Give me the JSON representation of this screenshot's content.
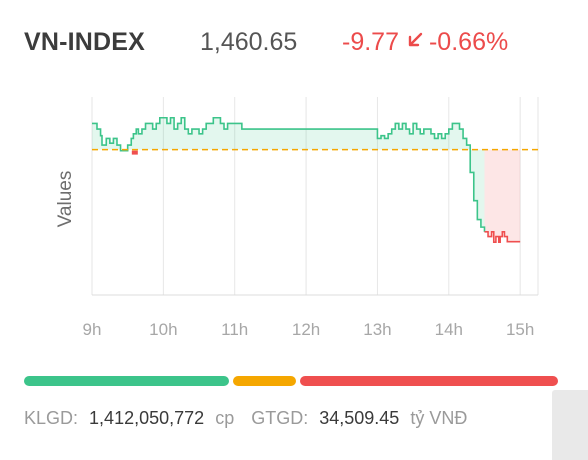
{
  "index": {
    "name": "VN-INDEX",
    "price": "1,460.65",
    "change": "-9.77",
    "change_pct": "-0.66%",
    "direction": "down",
    "direction_icon": "arrow-down-left-icon",
    "colors": {
      "up": "#3cc48a",
      "down": "#ef4f4f",
      "reference": "#f5a700"
    }
  },
  "chart_data": {
    "type": "area",
    "ylabel": "Values",
    "x_ticks": [
      "9h",
      "10h",
      "11h",
      "12h",
      "13h",
      "14h",
      "15h"
    ],
    "reference_value": 1470.42,
    "series": [
      {
        "x": [
          9.0,
          9.07,
          9.12,
          9.14,
          9.2,
          9.25,
          9.3,
          9.35,
          9.4,
          9.5,
          9.55,
          9.58,
          9.62,
          9.65,
          9.7,
          9.75,
          9.8,
          9.85,
          9.9,
          9.95,
          10.0,
          10.05,
          10.1,
          10.15,
          10.2,
          10.25,
          10.3,
          10.35,
          10.4,
          10.45,
          10.5,
          10.55,
          10.6,
          10.65,
          10.7,
          10.75,
          10.8,
          10.85,
          10.9,
          10.95,
          11.0,
          11.05,
          11.1,
          11.15,
          11.2,
          11.25,
          11.3,
          11.35,
          11.4,
          11.45,
          11.5,
          12.0,
          12.5,
          12.95,
          13.0,
          13.05,
          13.1,
          13.15,
          13.2,
          13.25,
          13.3,
          13.35,
          13.4,
          13.45,
          13.5,
          13.55,
          13.6,
          13.65,
          13.7,
          13.75,
          13.8,
          13.85,
          13.9,
          13.95,
          14.0,
          14.05,
          14.1,
          14.15,
          14.2,
          14.25,
          14.3,
          14.35,
          14.4,
          14.45,
          14.5
        ],
        "y": [
          1473.2,
          1472.6,
          1471.9,
          1470.9,
          1471.6,
          1471.1,
          1471.6,
          1470.9,
          1470.3,
          1470.9,
          1471.6,
          1472.1,
          1472.6,
          1472.1,
          1472.6,
          1473.2,
          1473.2,
          1472.6,
          1473.2,
          1473.8,
          1473.8,
          1473.2,
          1473.8,
          1472.6,
          1473.2,
          1473.8,
          1472.6,
          1472.1,
          1472.6,
          1472.6,
          1472.1,
          1472.6,
          1473.2,
          1473.2,
          1473.8,
          1473.8,
          1473.2,
          1472.6,
          1473.2,
          1473.2,
          1473.2,
          1473.2,
          1472.6,
          1472.6,
          1472.6,
          1472.6,
          1472.6,
          1472.6,
          1472.6,
          1472.6,
          1472.6,
          1472.6,
          1472.6,
          1472.6,
          1471.6,
          1471.9,
          1471.6,
          1472.1,
          1472.6,
          1473.2,
          1472.6,
          1473.2,
          1472.6,
          1472.1,
          1473.2,
          1472.6,
          1472.1,
          1472.6,
          1472.6,
          1472.1,
          1471.6,
          1472.1,
          1471.6,
          1472.1,
          1472.6,
          1473.2,
          1473.2,
          1472.6,
          1471.6,
          1470.9,
          1468.0,
          1465.0,
          1463.0,
          1462.2,
          1461.7
        ]
      },
      {
        "x": [
          14.5,
          14.55,
          14.6,
          14.63,
          14.66,
          14.68,
          14.7,
          14.72,
          14.75,
          14.78,
          14.82,
          14.9,
          15.0
        ],
        "y": [
          1461.7,
          1461.2,
          1461.7,
          1460.6,
          1461.2,
          1461.2,
          1460.6,
          1461.2,
          1461.7,
          1461.2,
          1460.65,
          1460.65,
          1460.65
        ]
      }
    ],
    "ylim": [
      1455,
      1476
    ],
    "xlim": [
      9.0,
      15.25
    ]
  },
  "progress": {
    "advance_fraction": 0.39,
    "unchanged_fraction": 0.12,
    "decline_fraction": 0.49
  },
  "footer": {
    "klgd_label": "KLGD:",
    "klgd_value": "1,412,050,772",
    "klgd_unit": "cp",
    "gtgd_label": "GTGD:",
    "gtgd_value": "34,509.45",
    "gtgd_unit": "tỷ VNĐ"
  }
}
